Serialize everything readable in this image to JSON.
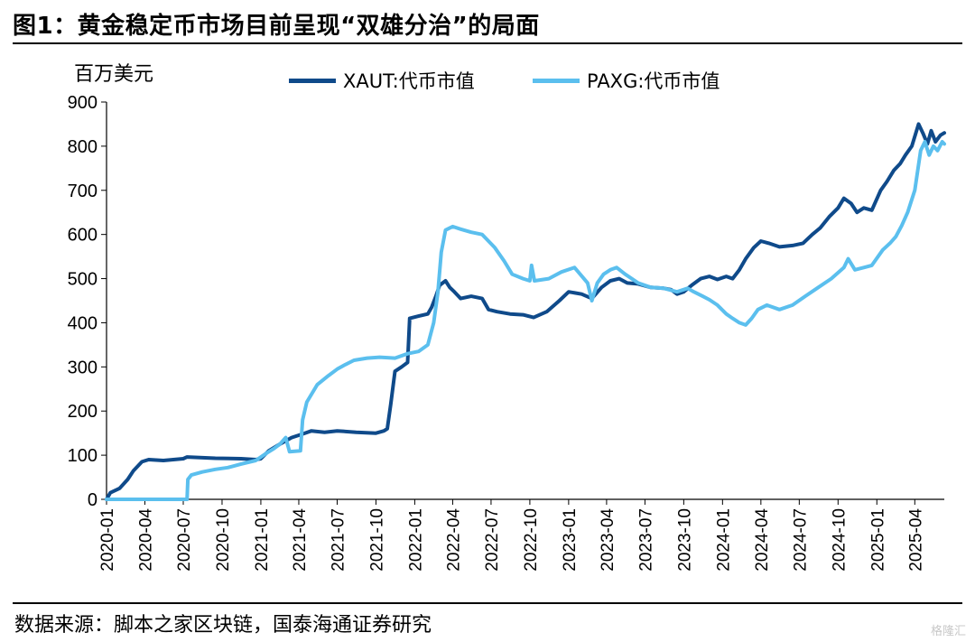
{
  "title": "图1：黄金稳定币市场目前呈现“双雄分治”的局面",
  "source": "数据来源：脚本之家区块链，国泰海通证券研究",
  "watermark": "格隆汇",
  "chart_data": {
    "type": "line",
    "ylabel": "百万美元",
    "ylim": [
      0,
      900
    ],
    "yticks": [
      0,
      100,
      200,
      300,
      400,
      500,
      600,
      700,
      800,
      900
    ],
    "xlim": [
      "2020-01-01",
      "2025-06-10"
    ],
    "xticks": [
      "2020-01",
      "2020-04",
      "2020-07",
      "2020-10",
      "2021-01",
      "2021-04",
      "2021-07",
      "2021-10",
      "2022-01",
      "2022-04",
      "2022-07",
      "2022-10",
      "2023-01",
      "2023-04",
      "2023-07",
      "2023-10",
      "2024-01",
      "2024-04",
      "2024-07",
      "2024-10",
      "2025-01",
      "2025-04"
    ],
    "series": [
      {
        "name": "XAUT:代币市值",
        "color": "#0f4a8a",
        "points": [
          [
            "2020-01-01",
            0
          ],
          [
            "2020-01-10",
            15
          ],
          [
            "2020-02-01",
            25
          ],
          [
            "2020-02-20",
            45
          ],
          [
            "2020-03-05",
            65
          ],
          [
            "2020-03-25",
            85
          ],
          [
            "2020-04-10",
            90
          ],
          [
            "2020-05-15",
            88
          ],
          [
            "2020-07-01",
            92
          ],
          [
            "2020-07-10",
            96
          ],
          [
            "2020-09-15",
            93
          ],
          [
            "2020-11-15",
            92
          ],
          [
            "2020-12-20",
            90
          ],
          [
            "2021-01-01",
            92
          ],
          [
            "2021-01-20",
            110
          ],
          [
            "2021-02-15",
            125
          ],
          [
            "2021-03-15",
            140
          ],
          [
            "2021-04-10",
            148
          ],
          [
            "2021-05-01",
            155
          ],
          [
            "2021-06-01",
            152
          ],
          [
            "2021-07-01",
            155
          ],
          [
            "2021-08-15",
            152
          ],
          [
            "2021-10-01",
            150
          ],
          [
            "2021-10-20",
            155
          ],
          [
            "2021-10-28",
            160
          ],
          [
            "2021-11-05",
            215
          ],
          [
            "2021-11-15",
            290
          ],
          [
            "2021-12-01",
            300
          ],
          [
            "2021-12-15",
            310
          ],
          [
            "2021-12-20",
            410
          ],
          [
            "2022-01-10",
            415
          ],
          [
            "2022-02-01",
            420
          ],
          [
            "2022-02-10",
            435
          ],
          [
            "2022-02-20",
            460
          ],
          [
            "2022-03-01",
            485
          ],
          [
            "2022-03-15",
            495
          ],
          [
            "2022-03-25",
            480
          ],
          [
            "2022-04-05",
            470
          ],
          [
            "2022-04-20",
            455
          ],
          [
            "2022-05-15",
            460
          ],
          [
            "2022-06-10",
            455
          ],
          [
            "2022-06-25",
            430
          ],
          [
            "2022-07-15",
            425
          ],
          [
            "2022-08-15",
            420
          ],
          [
            "2022-09-15",
            418
          ],
          [
            "2022-10-10",
            412
          ],
          [
            "2022-11-10",
            425
          ],
          [
            "2022-12-10",
            450
          ],
          [
            "2023-01-01",
            470
          ],
          [
            "2023-02-01",
            465
          ],
          [
            "2023-02-25",
            455
          ],
          [
            "2023-03-20",
            480
          ],
          [
            "2023-04-10",
            495
          ],
          [
            "2023-05-01",
            500
          ],
          [
            "2023-05-20",
            490
          ],
          [
            "2023-06-15",
            488
          ],
          [
            "2023-07-15",
            480
          ],
          [
            "2023-08-15",
            478
          ],
          [
            "2023-09-01",
            475
          ],
          [
            "2023-09-15",
            465
          ],
          [
            "2023-10-01",
            470
          ],
          [
            "2023-10-20",
            485
          ],
          [
            "2023-11-10",
            500
          ],
          [
            "2023-12-01",
            505
          ],
          [
            "2023-12-20",
            498
          ],
          [
            "2024-01-10",
            505
          ],
          [
            "2024-01-25",
            500
          ],
          [
            "2024-02-10",
            520
          ],
          [
            "2024-02-25",
            545
          ],
          [
            "2024-03-15",
            570
          ],
          [
            "2024-04-01",
            585
          ],
          [
            "2024-04-20",
            580
          ],
          [
            "2024-05-15",
            572
          ],
          [
            "2024-06-15",
            575
          ],
          [
            "2024-07-10",
            580
          ],
          [
            "2024-08-01",
            600
          ],
          [
            "2024-08-20",
            615
          ],
          [
            "2024-09-10",
            640
          ],
          [
            "2024-10-01",
            660
          ],
          [
            "2024-10-15",
            682
          ],
          [
            "2024-11-01",
            670
          ],
          [
            "2024-11-15",
            650
          ],
          [
            "2024-12-01",
            660
          ],
          [
            "2024-12-20",
            655
          ],
          [
            "2025-01-10",
            700
          ],
          [
            "2025-01-25",
            720
          ],
          [
            "2025-02-10",
            745
          ],
          [
            "2025-02-25",
            760
          ],
          [
            "2025-03-10",
            780
          ],
          [
            "2025-03-25",
            800
          ],
          [
            "2025-04-10",
            850
          ],
          [
            "2025-04-20",
            830
          ],
          [
            "2025-05-01",
            805
          ],
          [
            "2025-05-10",
            835
          ],
          [
            "2025-05-20",
            810
          ],
          [
            "2025-06-01",
            825
          ],
          [
            "2025-06-10",
            830
          ]
        ]
      },
      {
        "name": "PAXG:代币市值",
        "color": "#5bbfee",
        "points": [
          [
            "2020-01-01",
            0
          ],
          [
            "2020-07-10",
            0
          ],
          [
            "2020-07-12",
            45
          ],
          [
            "2020-07-20",
            55
          ],
          [
            "2020-08-15",
            62
          ],
          [
            "2020-09-15",
            68
          ],
          [
            "2020-10-15",
            72
          ],
          [
            "2020-11-15",
            80
          ],
          [
            "2020-12-20",
            88
          ],
          [
            "2021-01-15",
            105
          ],
          [
            "2021-02-01",
            115
          ],
          [
            "2021-02-15",
            125
          ],
          [
            "2021-03-01",
            140
          ],
          [
            "2021-03-10",
            108
          ],
          [
            "2021-04-05",
            110
          ],
          [
            "2021-04-10",
            180
          ],
          [
            "2021-04-20",
            220
          ],
          [
            "2021-05-15",
            260
          ],
          [
            "2021-06-10",
            280
          ],
          [
            "2021-07-01",
            295
          ],
          [
            "2021-07-20",
            305
          ],
          [
            "2021-08-10",
            315
          ],
          [
            "2021-09-10",
            320
          ],
          [
            "2021-10-10",
            322
          ],
          [
            "2021-11-15",
            320
          ],
          [
            "2021-12-15",
            330
          ],
          [
            "2022-01-10",
            335
          ],
          [
            "2022-02-01",
            350
          ],
          [
            "2022-02-15",
            400
          ],
          [
            "2022-02-25",
            470
          ],
          [
            "2022-03-05",
            560
          ],
          [
            "2022-03-15",
            610
          ],
          [
            "2022-04-01",
            618
          ],
          [
            "2022-04-20",
            612
          ],
          [
            "2022-05-15",
            605
          ],
          [
            "2022-06-10",
            600
          ],
          [
            "2022-06-25",
            585
          ],
          [
            "2022-07-10",
            570
          ],
          [
            "2022-08-01",
            540
          ],
          [
            "2022-08-20",
            510
          ],
          [
            "2022-09-15",
            500
          ],
          [
            "2022-10-01",
            495
          ],
          [
            "2022-10-05",
            530
          ],
          [
            "2022-10-12",
            495
          ],
          [
            "2022-11-15",
            500
          ],
          [
            "2022-12-15",
            515
          ],
          [
            "2023-01-15",
            525
          ],
          [
            "2023-02-15",
            490
          ],
          [
            "2023-02-25",
            450
          ],
          [
            "2023-03-10",
            490
          ],
          [
            "2023-03-25",
            510
          ],
          [
            "2023-04-10",
            520
          ],
          [
            "2023-04-25",
            525
          ],
          [
            "2023-05-15",
            510
          ],
          [
            "2023-06-15",
            490
          ],
          [
            "2023-07-15",
            480
          ],
          [
            "2023-08-15",
            478
          ],
          [
            "2023-09-15",
            470
          ],
          [
            "2023-10-10",
            478
          ],
          [
            "2023-10-25",
            470
          ],
          [
            "2023-11-15",
            460
          ],
          [
            "2023-12-01",
            452
          ],
          [
            "2023-12-20",
            440
          ],
          [
            "2024-01-10",
            420
          ],
          [
            "2024-01-25",
            410
          ],
          [
            "2024-02-10",
            400
          ],
          [
            "2024-02-25",
            395
          ],
          [
            "2024-03-10",
            410
          ],
          [
            "2024-03-25",
            430
          ],
          [
            "2024-04-15",
            440
          ],
          [
            "2024-05-15",
            430
          ],
          [
            "2024-06-15",
            440
          ],
          [
            "2024-07-15",
            460
          ],
          [
            "2024-08-15",
            480
          ],
          [
            "2024-09-15",
            500
          ],
          [
            "2024-10-15",
            525
          ],
          [
            "2024-10-25",
            545
          ],
          [
            "2024-11-10",
            520
          ],
          [
            "2024-12-01",
            525
          ],
          [
            "2024-12-20",
            530
          ],
          [
            "2025-01-15",
            565
          ],
          [
            "2025-02-01",
            580
          ],
          [
            "2025-02-15",
            595
          ],
          [
            "2025-03-01",
            620
          ],
          [
            "2025-03-15",
            650
          ],
          [
            "2025-04-01",
            700
          ],
          [
            "2025-04-15",
            790
          ],
          [
            "2025-04-25",
            810
          ],
          [
            "2025-05-05",
            780
          ],
          [
            "2025-05-15",
            800
          ],
          [
            "2025-05-25",
            790
          ],
          [
            "2025-06-05",
            810
          ],
          [
            "2025-06-10",
            805
          ]
        ]
      }
    ]
  }
}
